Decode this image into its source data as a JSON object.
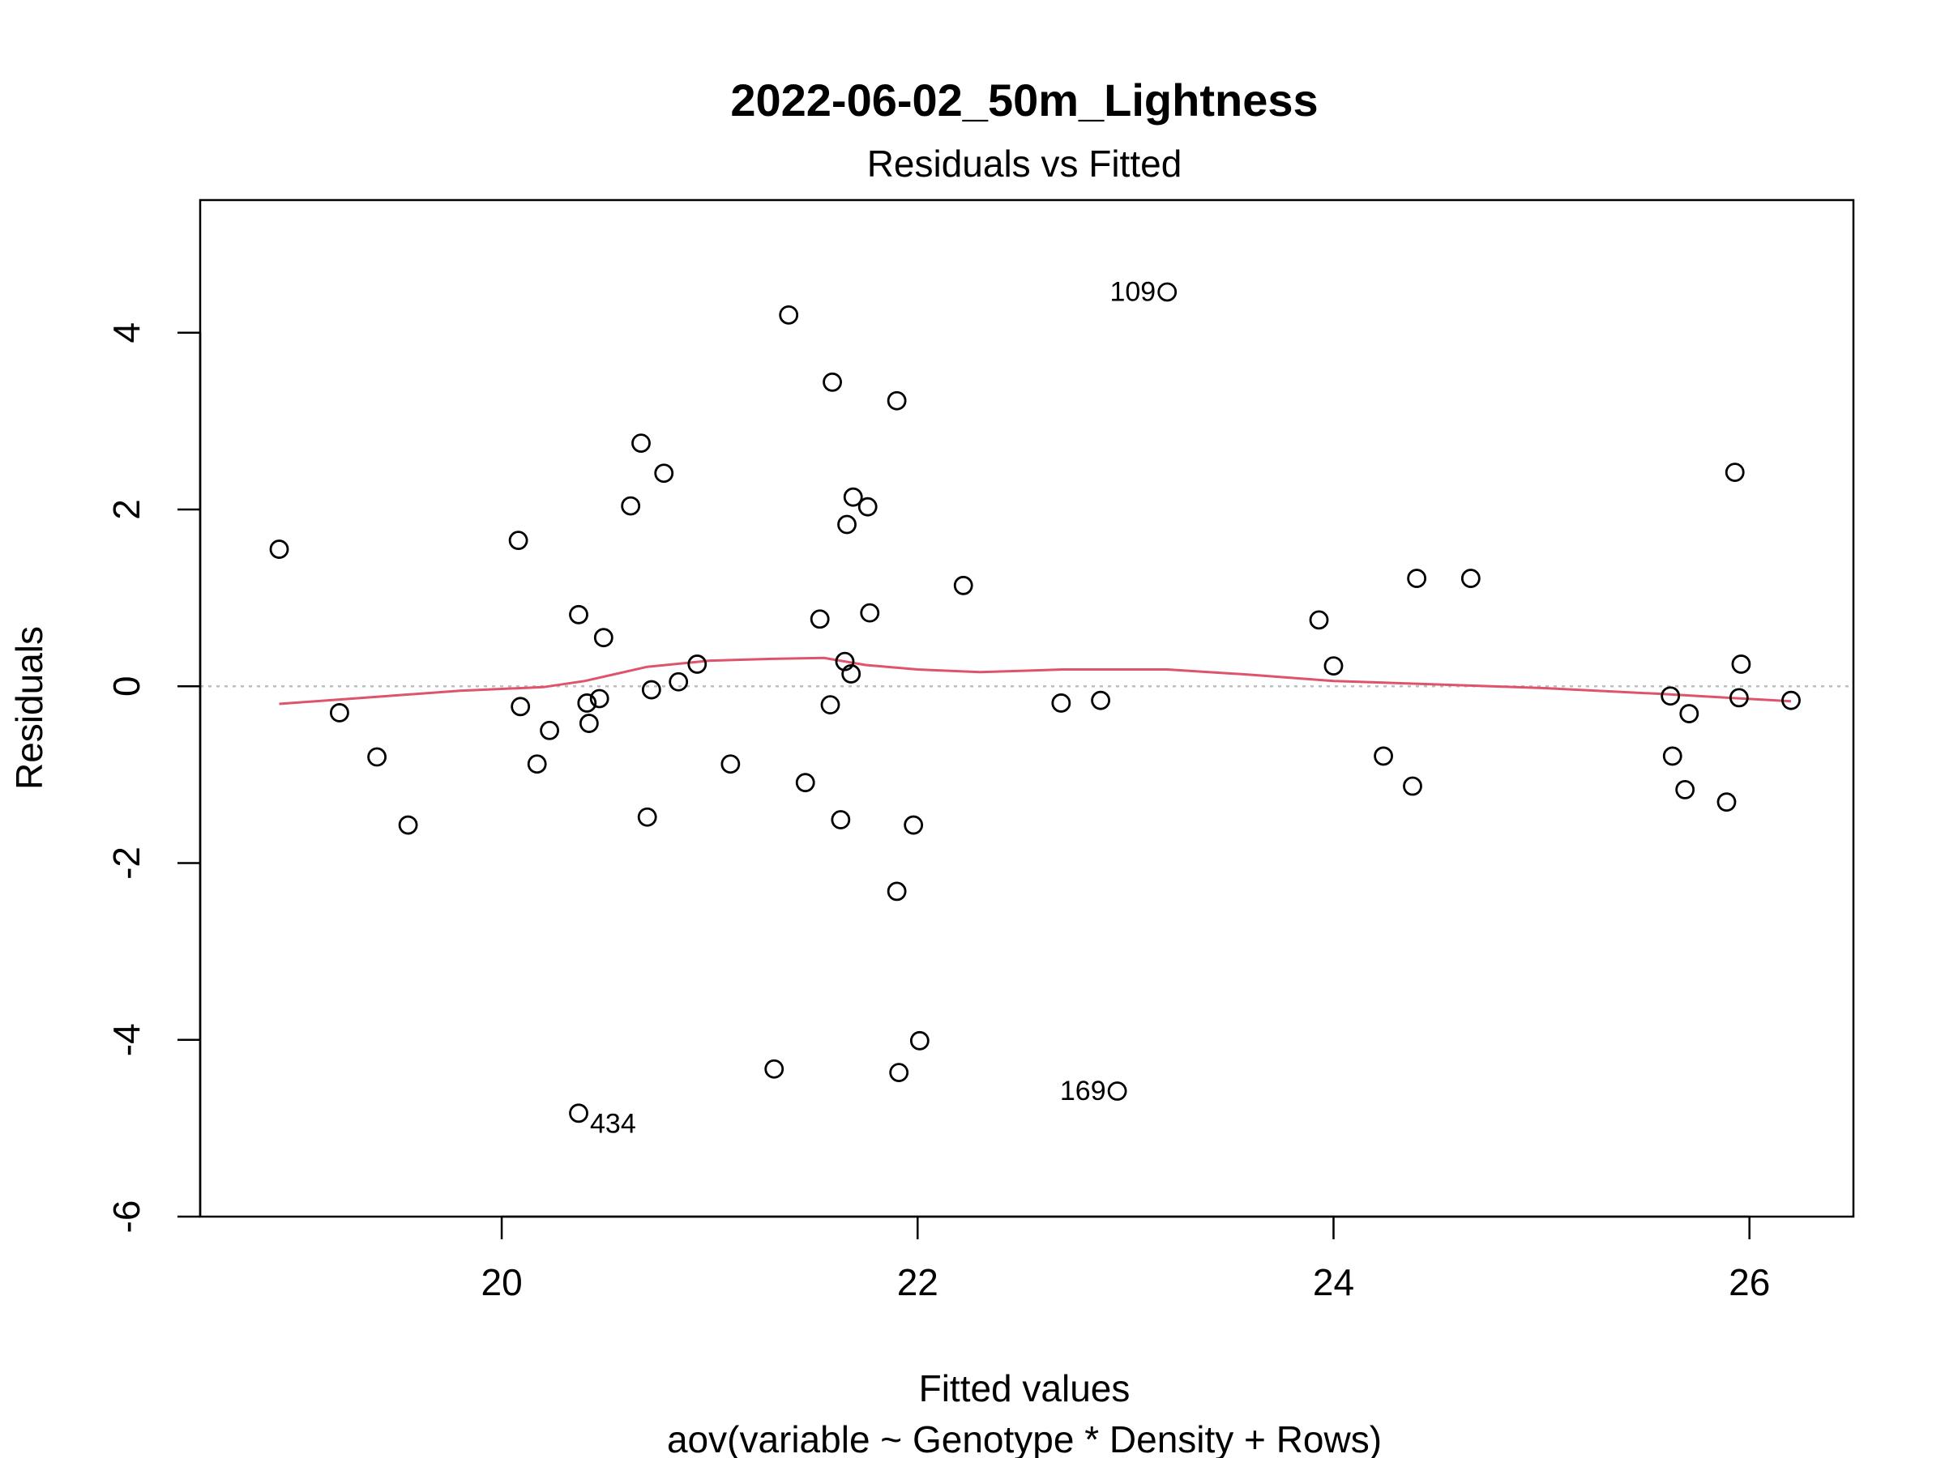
{
  "chart_data": {
    "type": "scatter",
    "title": "2022-06-02_50m_Lightness",
    "subtitle": "Residuals vs Fitted",
    "xlabel": "Fitted values",
    "ylabel": "Residuals",
    "caption": "aov(variable ~ Genotype * Density + Rows)",
    "xlim": [
      18.55,
      26.5
    ],
    "ylim": [
      -6,
      5.5
    ],
    "x_ticks": [
      20,
      22,
      24,
      26
    ],
    "y_ticks": [
      -6,
      -4,
      -2,
      0,
      2,
      4
    ],
    "colors": {
      "points": "#000000",
      "smooth": "#DF536B",
      "zero_line": "#BEBEBE"
    },
    "points": [
      {
        "x": 18.93,
        "y": 1.55
      },
      {
        "x": 19.22,
        "y": -0.3
      },
      {
        "x": 19.4,
        "y": -0.8
      },
      {
        "x": 19.55,
        "y": -1.57
      },
      {
        "x": 20.08,
        "y": 1.65
      },
      {
        "x": 20.09,
        "y": -0.23
      },
      {
        "x": 20.17,
        "y": -0.88
      },
      {
        "x": 20.23,
        "y": -0.5
      },
      {
        "x": 20.37,
        "y": -4.83,
        "label": "434"
      },
      {
        "x": 20.37,
        "y": 0.81
      },
      {
        "x": 20.41,
        "y": -0.19
      },
      {
        "x": 20.42,
        "y": -0.42
      },
      {
        "x": 20.47,
        "y": -0.14
      },
      {
        "x": 20.49,
        "y": 0.55
      },
      {
        "x": 20.62,
        "y": 2.04
      },
      {
        "x": 20.67,
        "y": 2.75
      },
      {
        "x": 20.7,
        "y": -1.48
      },
      {
        "x": 20.72,
        "y": -0.04
      },
      {
        "x": 20.78,
        "y": 2.41
      },
      {
        "x": 20.85,
        "y": 0.05
      },
      {
        "x": 20.94,
        "y": 0.25
      },
      {
        "x": 21.1,
        "y": -0.88
      },
      {
        "x": 21.31,
        "y": -4.33
      },
      {
        "x": 21.38,
        "y": 4.2
      },
      {
        "x": 21.46,
        "y": -1.09
      },
      {
        "x": 21.53,
        "y": 0.76
      },
      {
        "x": 21.58,
        "y": -0.21
      },
      {
        "x": 21.59,
        "y": 3.44
      },
      {
        "x": 21.63,
        "y": -1.51
      },
      {
        "x": 21.65,
        "y": 0.28
      },
      {
        "x": 21.66,
        "y": 1.83
      },
      {
        "x": 21.68,
        "y": 0.14
      },
      {
        "x": 21.69,
        "y": 2.14
      },
      {
        "x": 21.76,
        "y": 2.03
      },
      {
        "x": 21.77,
        "y": 0.83
      },
      {
        "x": 21.9,
        "y": 3.23
      },
      {
        "x": 21.9,
        "y": -2.32
      },
      {
        "x": 21.91,
        "y": -4.37
      },
      {
        "x": 21.98,
        "y": -1.57
      },
      {
        "x": 22.01,
        "y": -4.01
      },
      {
        "x": 22.22,
        "y": 1.14
      },
      {
        "x": 22.69,
        "y": -0.19
      },
      {
        "x": 22.88,
        "y": -0.16
      },
      {
        "x": 22.96,
        "y": -4.58,
        "label": "169"
      },
      {
        "x": 23.2,
        "y": 4.46,
        "label": "109"
      },
      {
        "x": 23.93,
        "y": 0.75
      },
      {
        "x": 24.0,
        "y": 0.23
      },
      {
        "x": 24.24,
        "y": -0.79
      },
      {
        "x": 24.38,
        "y": -1.13
      },
      {
        "x": 24.4,
        "y": 1.22
      },
      {
        "x": 24.66,
        "y": 1.22
      },
      {
        "x": 25.62,
        "y": -0.11
      },
      {
        "x": 25.63,
        "y": -0.79
      },
      {
        "x": 25.69,
        "y": -1.17
      },
      {
        "x": 25.71,
        "y": -0.31
      },
      {
        "x": 25.89,
        "y": -1.31
      },
      {
        "x": 25.93,
        "y": 2.42
      },
      {
        "x": 25.95,
        "y": -0.13
      },
      {
        "x": 25.96,
        "y": 0.25
      },
      {
        "x": 26.2,
        "y": -0.16
      }
    ],
    "smooth_line": [
      {
        "x": 18.93,
        "y": -0.2
      },
      {
        "x": 19.4,
        "y": -0.12
      },
      {
        "x": 19.8,
        "y": -0.05
      },
      {
        "x": 20.2,
        "y": -0.01
      },
      {
        "x": 20.4,
        "y": 0.06
      },
      {
        "x": 20.7,
        "y": 0.22
      },
      {
        "x": 21.0,
        "y": 0.29
      },
      {
        "x": 21.3,
        "y": 0.31
      },
      {
        "x": 21.55,
        "y": 0.32
      },
      {
        "x": 21.75,
        "y": 0.24
      },
      {
        "x": 22.0,
        "y": 0.19
      },
      {
        "x": 22.3,
        "y": 0.16
      },
      {
        "x": 22.7,
        "y": 0.19
      },
      {
        "x": 23.2,
        "y": 0.19
      },
      {
        "x": 23.6,
        "y": 0.13
      },
      {
        "x": 24.0,
        "y": 0.06
      },
      {
        "x": 24.5,
        "y": 0.02
      },
      {
        "x": 25.0,
        "y": -0.02
      },
      {
        "x": 25.6,
        "y": -0.09
      },
      {
        "x": 26.2,
        "y": -0.17
      }
    ]
  }
}
